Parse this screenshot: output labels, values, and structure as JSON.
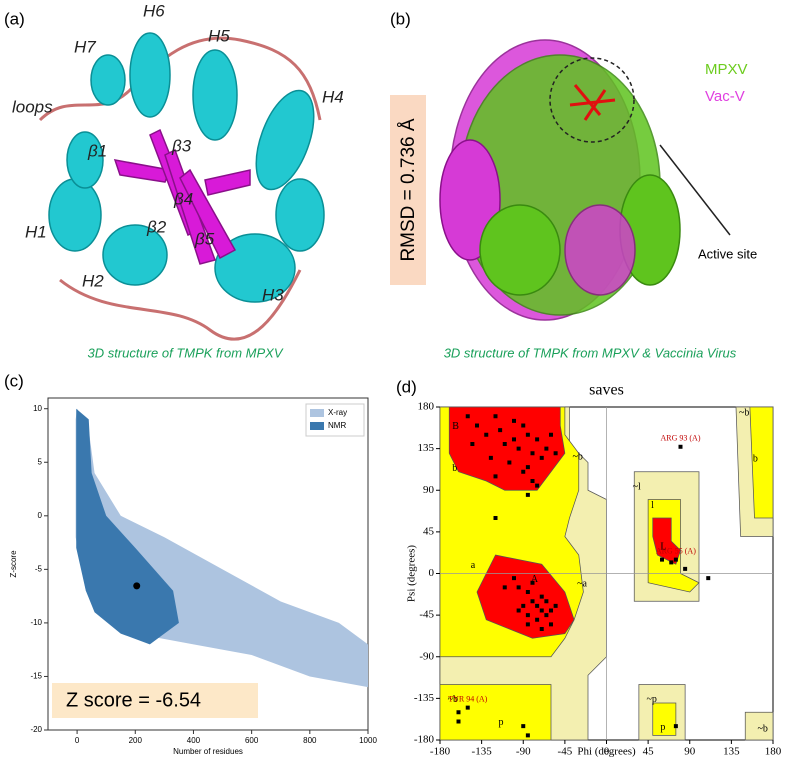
{
  "panels": {
    "a": {
      "label": "(a)",
      "caption": "3D structure of TMPK from MPXV",
      "labels": [
        "H6",
        "H5",
        "H7",
        "H4",
        "loops",
        "β1",
        "β3",
        "β4",
        "β2",
        "β5",
        "H1",
        "H2",
        "H3"
      ]
    },
    "b": {
      "label": "(b)",
      "caption": "3D structure of TMPK from MPXV & Vaccinia Virus",
      "legend": [
        {
          "name": "MPXV",
          "color": "#6ccc1e"
        },
        {
          "name": "Vac-V",
          "color": "#e040e0"
        }
      ],
      "rmsd": "RMSD = 0.736 Å",
      "annotation": "Active site"
    }
  },
  "chart_data": [
    {
      "type": "scatter",
      "label": "(c)",
      "xlabel": "Number of residues",
      "ylabel": "Z-score",
      "xlim": [
        -100,
        1000
      ],
      "xticks": [
        0,
        200,
        400,
        600,
        800,
        1000
      ],
      "ylim": [
        -20,
        11
      ],
      "yticks": [
        -20,
        -15,
        -10,
        -5,
        0,
        5,
        10
      ],
      "series": [
        {
          "name": "X-ray",
          "color": "#adc4e0"
        },
        {
          "name": "NMR",
          "color": "#3a78ae"
        }
      ],
      "legend": "upper right",
      "highlight": {
        "x": 205,
        "y": -6.54,
        "label": "Z score = -6.54"
      }
    },
    {
      "type": "ramachandran",
      "label": "(d)",
      "title": "saves",
      "xlabel": "Phi (degrees)",
      "ylabel": "Psi (degrees)",
      "xlim": [
        -180,
        180
      ],
      "xticks": [
        -180,
        -135,
        -90,
        -45,
        0,
        45,
        90,
        135,
        180
      ],
      "ylim": [
        -180,
        180
      ],
      "yticks": [
        180,
        135,
        90,
        45,
        0,
        -45,
        -90,
        -135,
        -180
      ],
      "x": [
        -150,
        -140,
        -120,
        -100,
        -90,
        -85,
        -75,
        -110,
        -95,
        -80,
        -70,
        -125,
        -105,
        -65,
        -60,
        -55,
        -90,
        -80,
        -75,
        -145,
        -130,
        -115,
        -100,
        -85,
        -120,
        -100,
        -95,
        -85,
        -80,
        -75,
        -70,
        -65,
        -60,
        -90,
        -85,
        -75,
        -70,
        -65,
        -80,
        -60,
        -110,
        -55,
        -95,
        -70,
        -85,
        80,
        75,
        60,
        70,
        85,
        110,
        -150,
        -160,
        -85,
        -90,
        75,
        -85,
        -120,
        -160
      ],
      "y": [
        170,
        160,
        170,
        165,
        160,
        150,
        145,
        140,
        135,
        130,
        125,
        125,
        120,
        135,
        150,
        130,
        110,
        100,
        95,
        140,
        150,
        155,
        145,
        115,
        105,
        -5,
        -15,
        -20,
        -30,
        -35,
        -40,
        -45,
        -40,
        -35,
        -45,
        -50,
        -25,
        -30,
        -10,
        -55,
        -15,
        -35,
        -40,
        -60,
        -55,
        137,
        15,
        15,
        12,
        5,
        -5,
        -145,
        -150,
        -175,
        -165,
        -165,
        85,
        60,
        -160
      ],
      "point_color": "#000000",
      "labels": [
        {
          "text": "ARG 93 (A)",
          "x": 80,
          "y": 137
        },
        {
          "text": "ARG 55 (A)",
          "x": 75,
          "y": 15
        },
        {
          "text": "TYR 94 (A)",
          "x": -150,
          "y": -145
        }
      ],
      "region_labels": [
        {
          "text": "B",
          "x": -170,
          "y": 165
        },
        {
          "text": "b",
          "x": -170,
          "y": 120
        },
        {
          "text": "A",
          "x": -85,
          "y": 0
        },
        {
          "text": "a",
          "x": -150,
          "y": 15
        },
        {
          "text": "L",
          "x": 55,
          "y": 35
        },
        {
          "text": "l",
          "x": 45,
          "y": 80
        },
        {
          "text": "p",
          "x": -120,
          "y": -155
        },
        {
          "text": "p",
          "x": 55,
          "y": -160
        },
        {
          "text": "~b",
          "x": -40,
          "y": 132
        },
        {
          "text": "~a",
          "x": -35,
          "y": -5
        },
        {
          "text": "~l",
          "x": 25,
          "y": 100
        },
        {
          "text": "~p",
          "x": 40,
          "y": -130
        },
        {
          "text": "~b",
          "x": 140,
          "y": 180
        },
        {
          "text": "b",
          "x": 155,
          "y": 130
        },
        {
          "text": "~b",
          "x": 160,
          "y": -162
        },
        {
          "text": "~b",
          "x": -175,
          "y": -130
        }
      ]
    }
  ]
}
